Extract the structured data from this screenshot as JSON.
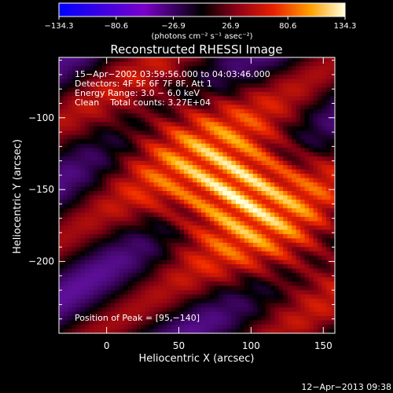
{
  "chart_data": {
    "type": "heatmap",
    "title": "Reconstructed RHESSI Image",
    "colorbar": {
      "ticks": [
        -134.3,
        -80.6,
        -26.9,
        26.9,
        80.6,
        134.3
      ],
      "tick_labels": [
        "−134.3",
        "−80.6",
        "−26.9",
        "26.9",
        "80.6",
        "134.3"
      ],
      "range": [
        -134.3,
        134.3
      ],
      "unit_label": "(photons cm⁻² s⁻¹ asec⁻²)"
    },
    "xlabel": "Heliocentric X (arcsec)",
    "ylabel": "Heliocentric Y (arcsec)",
    "xlim": [
      -33,
      158
    ],
    "ylim": [
      -250,
      -58
    ],
    "x_ticks": [
      0,
      50,
      100,
      150
    ],
    "y_ticks": [
      -100,
      -150,
      -200
    ],
    "x_tick_labels": [
      "0",
      "50",
      "100",
      "150"
    ],
    "y_tick_labels": [
      "−100",
      "−150",
      "−200"
    ],
    "annotations": [
      "15−Apr−2002 03:59:56.000 to 04:03:46.000",
      "Detectors: 4F 5F 6F 7F 8F, Att 1",
      "Energy Range: 3.0 − 6.0 keV",
      "Clean    Total counts: 3.27E+04"
    ],
    "peak_label": "Position of Peak = [95,−140]",
    "peak": [
      95,
      -140
    ],
    "timestamp": "12−Apr−2013 09:38"
  }
}
